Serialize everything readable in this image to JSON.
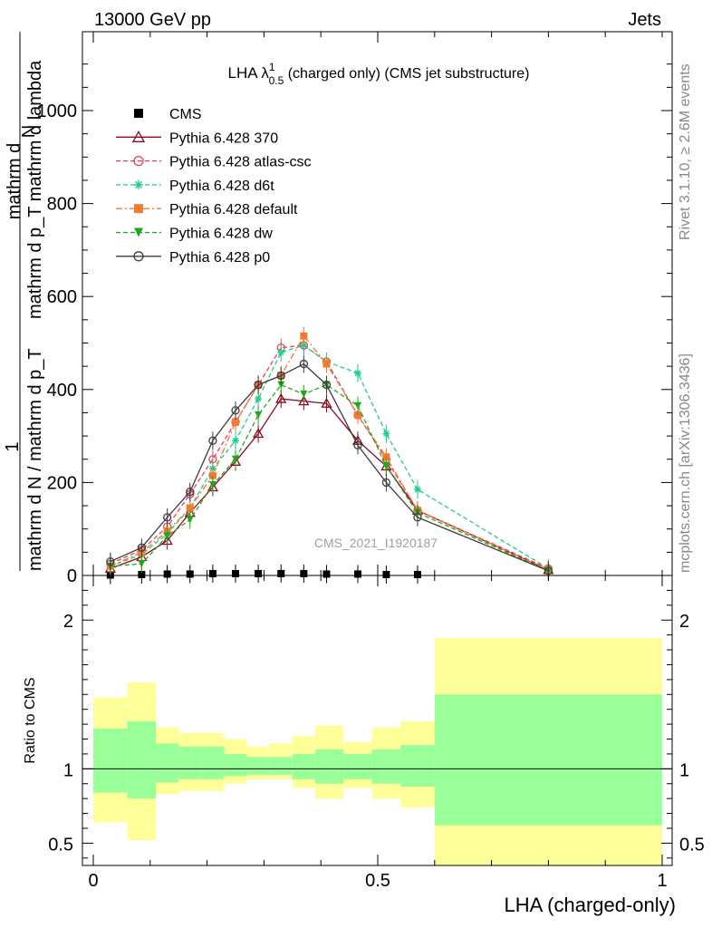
{
  "header": {
    "left": "13000 GeV pp",
    "right": "Jets"
  },
  "side_labels": {
    "rivet": "Rivet 3.1.10, ≥ 2.6M events",
    "mcplots": "mcplots.cern.ch [arXiv:1306.3436]"
  },
  "watermark": "CMS_2021_I1920187",
  "chart_data": [
    {
      "type": "line",
      "title": "LHA λ¹₀.₅ (charged only) (CMS jet substructure)",
      "title_parts": {
        "pre": "LHA λ",
        "sup": "1",
        "sub": "0.5",
        "post": " (charged only) (CMS jet substructure)"
      },
      "ylabel_top": "1",
      "ylabel_num": "mathrm d²N",
      "ylabel_den": "mathrm d N / mathrm d p_T mathrm d p_T mathrm d lambda",
      "ylabel_lines": [
        "mathrm d",
        "N",
        "mathrm d p_T mathrm d lambda",
        "mathrm d N / mathrm d p_T"
      ],
      "xlim": [
        0,
        1
      ],
      "ylim": [
        0,
        1000
      ],
      "y_ticks": [
        0,
        200,
        400,
        600,
        800,
        1000
      ],
      "y_tick_labels": [
        "0",
        "200",
        "400",
        "600",
        "800",
        "1000"
      ],
      "legend_position": "top-left",
      "x": [
        0.03,
        0.085,
        0.13,
        0.17,
        0.21,
        0.25,
        0.29,
        0.33,
        0.37,
        0.41,
        0.465,
        0.515,
        0.57,
        0.8
      ],
      "series": [
        {
          "name": "CMS",
          "color": "#000000",
          "marker": "square",
          "dash": "none",
          "values": [
            1,
            2,
            3,
            3,
            4,
            4,
            4,
            4,
            4,
            3,
            3,
            2,
            2,
            null
          ]
        },
        {
          "name": "Pythia 6.428 370",
          "color": "#8b0a1e",
          "marker": "triangle-open",
          "dash": "solid",
          "values": [
            15,
            40,
            75,
            135,
            190,
            245,
            305,
            380,
            375,
            370,
            290,
            235,
            140,
            12
          ]
        },
        {
          "name": "Pythia 6.428 atlas-csc",
          "color": "#e8415a",
          "marker": "circle-open",
          "dash": "dashed",
          "values": [
            25,
            55,
            105,
            175,
            250,
            330,
            410,
            490,
            495,
            460,
            345,
            250,
            140,
            15
          ]
        },
        {
          "name": "Pythia 6.428 d6t",
          "color": "#1fcc8a",
          "marker": "star",
          "dash": "dashed",
          "values": [
            20,
            45,
            90,
            145,
            230,
            290,
            380,
            480,
            495,
            460,
            435,
            305,
            185,
            15
          ]
        },
        {
          "name": "Pythia 6.428 default",
          "color": "#f47a30",
          "marker": "square",
          "dash": "dashdot",
          "values": [
            20,
            50,
            95,
            145,
            215,
            330,
            410,
            430,
            515,
            455,
            345,
            255,
            140,
            12
          ]
        },
        {
          "name": "Pythia 6.428 dw",
          "color": "#1ea81e",
          "marker": "triangle-down",
          "dash": "dashed",
          "values": [
            20,
            25,
            85,
            120,
            195,
            250,
            345,
            410,
            390,
            410,
            365,
            235,
            135,
            10
          ]
        },
        {
          "name": "Pythia 6.428 p0",
          "color": "#3c3c3c",
          "marker": "circle-open",
          "dash": "solid",
          "values": [
            30,
            60,
            125,
            180,
            290,
            355,
            410,
            430,
            455,
            410,
            280,
            200,
            125,
            10
          ]
        }
      ]
    },
    {
      "type": "area",
      "ylabel": "Ratio to CMS",
      "xlabel": "LHA (charged-only)",
      "xlim": [
        0,
        1
      ],
      "ylim": [
        0.35,
        2.3
      ],
      "y_ticks": [
        0.5,
        1,
        2
      ],
      "y_tick_labels": [
        "0.5",
        "1",
        "2"
      ],
      "x_ticks": [
        0,
        0.5,
        1
      ],
      "x_tick_labels": [
        "0",
        "0.5",
        "1"
      ],
      "bins": [
        {
          "x0": 0.0,
          "x1": 0.06,
          "stat": [
            0.84,
            1.27
          ],
          "total": [
            0.64,
            1.48
          ]
        },
        {
          "x0": 0.06,
          "x1": 0.11,
          "stat": [
            0.8,
            1.32
          ],
          "total": [
            0.52,
            1.58
          ]
        },
        {
          "x0": 0.11,
          "x1": 0.15,
          "stat": [
            0.91,
            1.17
          ],
          "total": [
            0.83,
            1.28
          ]
        },
        {
          "x0": 0.15,
          "x1": 0.19,
          "stat": [
            0.93,
            1.15
          ],
          "total": [
            0.85,
            1.24
          ]
        },
        {
          "x0": 0.19,
          "x1": 0.23,
          "stat": [
            0.93,
            1.15
          ],
          "total": [
            0.85,
            1.24
          ]
        },
        {
          "x0": 0.23,
          "x1": 0.27,
          "stat": [
            0.95,
            1.1
          ],
          "total": [
            0.9,
            1.2
          ]
        },
        {
          "x0": 0.27,
          "x1": 0.31,
          "stat": [
            0.96,
            1.08
          ],
          "total": [
            0.93,
            1.15
          ]
        },
        {
          "x0": 0.31,
          "x1": 0.35,
          "stat": [
            0.96,
            1.08
          ],
          "total": [
            0.93,
            1.17
          ]
        },
        {
          "x0": 0.35,
          "x1": 0.39,
          "stat": [
            0.93,
            1.1
          ],
          "total": [
            0.87,
            1.22
          ]
        },
        {
          "x0": 0.39,
          "x1": 0.44,
          "stat": [
            0.9,
            1.13
          ],
          "total": [
            0.8,
            1.29
          ]
        },
        {
          "x0": 0.44,
          "x1": 0.49,
          "stat": [
            0.93,
            1.1
          ],
          "total": [
            0.87,
            1.18
          ]
        },
        {
          "x0": 0.49,
          "x1": 0.54,
          "stat": [
            0.9,
            1.13
          ],
          "total": [
            0.8,
            1.28
          ]
        },
        {
          "x0": 0.54,
          "x1": 0.6,
          "stat": [
            0.88,
            1.16
          ],
          "total": [
            0.74,
            1.32
          ]
        },
        {
          "x0": 0.6,
          "x1": 1.0,
          "stat": [
            0.62,
            1.5
          ],
          "total": [
            0.35,
            1.88
          ]
        }
      ],
      "stat_color": "#99ff99",
      "total_color": "#ffff99"
    }
  ]
}
